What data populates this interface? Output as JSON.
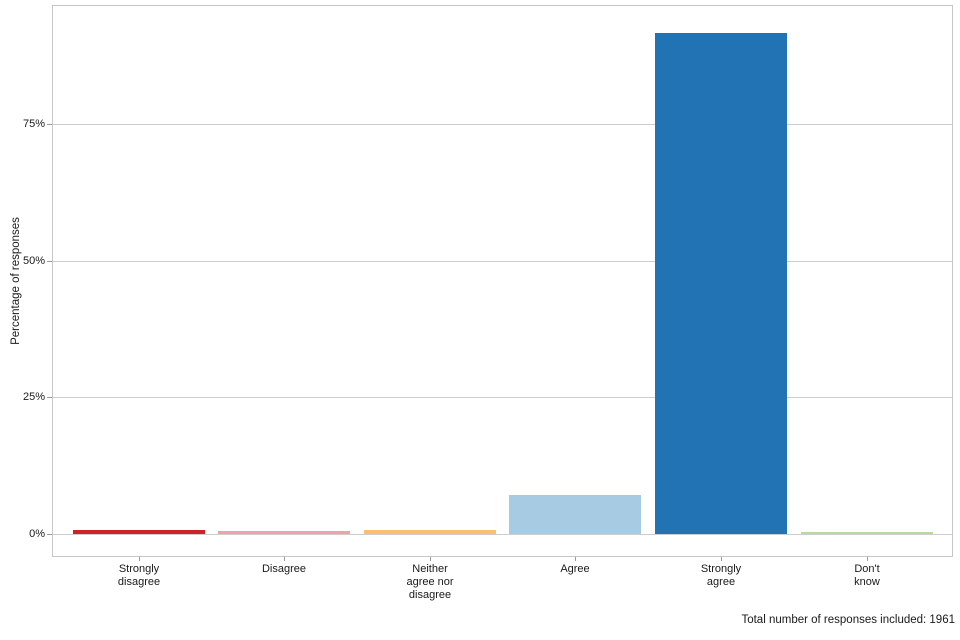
{
  "chart_data": {
    "type": "bar",
    "title": "",
    "xlabel": "",
    "ylabel": "Percentage of responses",
    "categories": [
      "Strongly\ndisagree",
      "Disagree",
      "Neither\nagree nor\ndisagree",
      "Agree",
      "Strongly\nagree",
      "Don't\nknow"
    ],
    "values": [
      0.8,
      0.5,
      0.8,
      7.1,
      91.6,
      0.3
    ],
    "bar_colors": [
      "#cb2328",
      "#f2a2a4",
      "#fcbf70",
      "#a7cbe2",
      "#2173b3",
      "#bcd99c"
    ],
    "ytick_values": [
      0,
      25,
      50,
      75
    ],
    "ytick_labels": [
      "0%",
      "25%",
      "50%",
      "75%"
    ],
    "ylim": [
      0,
      96.6
    ],
    "grid": "horizontal",
    "legend": "none"
  },
  "caption": "Total number of responses included: 1961",
  "colors": {
    "background": "#ffffff",
    "panel_border": "#c6c6c6",
    "gridline": "#cdcdcd",
    "tick": "#9a9a9a",
    "text": "#1a1a1a"
  }
}
